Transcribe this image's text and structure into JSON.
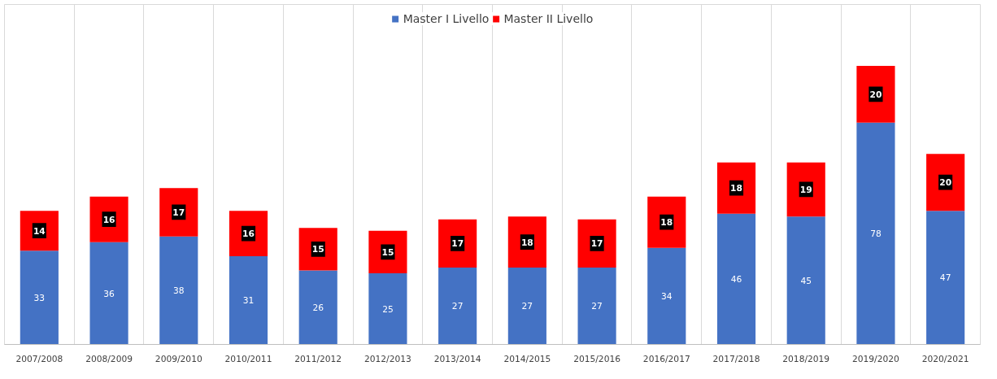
{
  "chart_data": {
    "type": "bar",
    "stacked": true,
    "categories": [
      "2007/2008",
      "2008/2009",
      "2009/2010",
      "2010/2011",
      "2011/2012",
      "2012/2013",
      "2013/2014",
      "2014/2015",
      "2015/2016",
      "2016/2017",
      "2017/2018",
      "2018/2019",
      "2019/2020",
      "2020/2021"
    ],
    "series": [
      {
        "name": "Master I Livello",
        "color": "#4472c4",
        "values": [
          33,
          36,
          38,
          31,
          26,
          25,
          27,
          27,
          27,
          34,
          46,
          45,
          78,
          47
        ]
      },
      {
        "name": "Master II Livello",
        "color": "#ff0000",
        "values": [
          14,
          16,
          17,
          16,
          15,
          15,
          17,
          18,
          17,
          18,
          18,
          19,
          20,
          20
        ]
      }
    ],
    "data_labels": true,
    "legend": "top",
    "grid": "x"
  }
}
